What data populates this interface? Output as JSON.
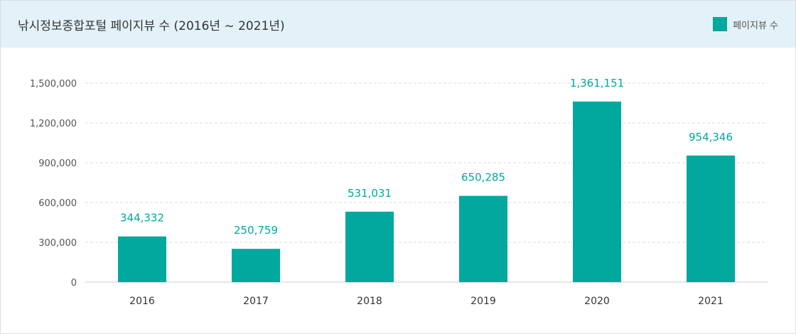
{
  "header": {
    "title": "낚시정보종합포털 페이지뷰 수 (2016년 ~ 2021년)",
    "legend_label": "페이지뷰 수"
  },
  "colors": {
    "bar": "#00a89d",
    "value_label": "#00a89d",
    "header_bg": "#e3f1f8",
    "gridline": "#dddddd",
    "axis_text": "#444444"
  },
  "chart_data": {
    "type": "bar",
    "title": "낚시정보종합포털 페이지뷰 수 (2016년 ~ 2021년)",
    "categories": [
      "2016",
      "2017",
      "2018",
      "2019",
      "2020",
      "2021"
    ],
    "series": [
      {
        "name": "페이지뷰 수",
        "values": [
          344332,
          250759,
          531031,
          650285,
          1361151,
          954346
        ],
        "value_labels": [
          "344,332",
          "250,759",
          "531,031",
          "650,285",
          "1,361,151",
          "954,346"
        ]
      }
    ],
    "y_ticks": [
      0,
      300000,
      600000,
      900000,
      1200000,
      1500000
    ],
    "y_tick_labels": [
      "0",
      "300,000",
      "600,000",
      "900,000",
      "1,200,000",
      "1,500,000"
    ],
    "ylim": [
      0,
      1500000
    ],
    "xlabel": "",
    "ylabel": "",
    "grid": true,
    "legend_position": "top-right"
  }
}
